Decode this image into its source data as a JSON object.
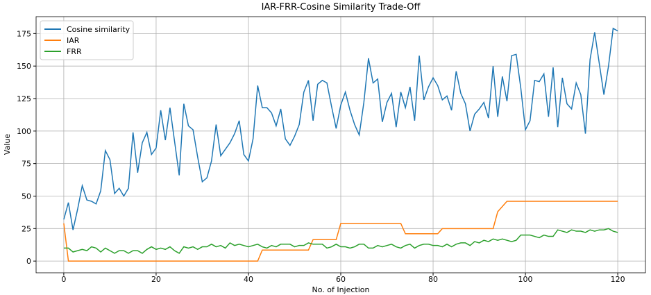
{
  "chart_data": {
    "type": "line",
    "title": "IAR-FRR-Cosine Similarity Trade-Off",
    "xlabel": "No. of Injection",
    "ylabel": "Value",
    "x": [
      0,
      1,
      2,
      3,
      4,
      5,
      6,
      7,
      8,
      9,
      10,
      11,
      12,
      13,
      14,
      15,
      16,
      17,
      18,
      19,
      20,
      21,
      22,
      23,
      24,
      25,
      26,
      27,
      28,
      29,
      30,
      31,
      32,
      33,
      34,
      35,
      36,
      37,
      38,
      39,
      40,
      41,
      42,
      43,
      44,
      45,
      46,
      47,
      48,
      49,
      50,
      51,
      52,
      53,
      54,
      55,
      56,
      57,
      58,
      59,
      60,
      61,
      62,
      63,
      64,
      65,
      66,
      67,
      68,
      69,
      70,
      71,
      72,
      73,
      74,
      75,
      76,
      77,
      78,
      79,
      80,
      81,
      82,
      83,
      84,
      85,
      86,
      87,
      88,
      89,
      90,
      91,
      92,
      93,
      94,
      95,
      96,
      97,
      98,
      99,
      100,
      101,
      102,
      103,
      104,
      105,
      106,
      107,
      108,
      109,
      110,
      111,
      112,
      113,
      114,
      115,
      116,
      117,
      118,
      119,
      120
    ],
    "series": [
      {
        "name": "Cosine similarity",
        "color": "#1f77b4",
        "values": [
          32,
          45,
          24,
          40,
          58,
          47,
          46,
          44,
          54,
          85,
          78,
          52,
          56,
          50,
          56,
          99,
          68,
          91,
          99,
          82,
          87,
          116,
          93,
          118,
          92,
          66,
          121,
          104,
          101,
          80,
          61,
          64,
          77,
          105,
          81,
          86,
          91,
          98,
          108,
          82,
          77,
          94,
          135,
          118,
          118,
          114,
          104,
          117,
          94,
          89,
          96,
          105,
          130,
          139,
          108,
          136,
          139,
          137,
          119,
          102,
          120,
          130,
          116,
          105,
          97,
          122,
          156,
          137,
          140,
          107,
          122,
          129,
          103,
          130,
          118,
          134,
          108,
          158,
          124,
          134,
          141,
          135,
          124,
          127,
          116,
          146,
          129,
          121,
          100,
          113,
          117,
          122,
          110,
          150,
          111,
          142,
          123,
          158,
          159,
          133,
          101,
          108,
          139,
          138,
          144,
          111,
          149,
          103,
          141,
          121,
          117,
          137,
          128,
          98,
          155,
          176,
          152,
          128,
          150,
          179,
          177
        ]
      },
      {
        "name": "IAR",
        "color": "#ff7f0e",
        "values": [
          29,
          0,
          0,
          0,
          0,
          0,
          0,
          0,
          0,
          0,
          0,
          0,
          0,
          0,
          0,
          0,
          0,
          0,
          0,
          0,
          0,
          0,
          0,
          0,
          0,
          0,
          0,
          0,
          0,
          0,
          0,
          0,
          0,
          0,
          0,
          0,
          0,
          0,
          0,
          0,
          0,
          0,
          0,
          8.5,
          8.5,
          8.5,
          8.5,
          8.5,
          8.5,
          8.5,
          8.5,
          8.5,
          8.5,
          8.5,
          16.5,
          16.5,
          16.5,
          16.5,
          16.5,
          16.5,
          29,
          29,
          29,
          29,
          29,
          29,
          29,
          29,
          29,
          29,
          29,
          29,
          29,
          29,
          21,
          21,
          21,
          21,
          21,
          21,
          21,
          21,
          25,
          25,
          25,
          25,
          25,
          25,
          25,
          25,
          25,
          25,
          25,
          25,
          38,
          42,
          46,
          46,
          46,
          46,
          46,
          46,
          46,
          46,
          46,
          46,
          46,
          46,
          46,
          46,
          46,
          46,
          46,
          46,
          46,
          46,
          46,
          46,
          46,
          46,
          46
        ]
      },
      {
        "name": "FRR",
        "color": "#2ca02c",
        "values": [
          10,
          10,
          7,
          8,
          9,
          8,
          11,
          10,
          7,
          10,
          8,
          6,
          8,
          8,
          6,
          8,
          8,
          6,
          9,
          11,
          9,
          10,
          9,
          11,
          8,
          6,
          11,
          10,
          11,
          9,
          11,
          11,
          13,
          11,
          12,
          10,
          14,
          12,
          13,
          12,
          11,
          12,
          13,
          11,
          10,
          12,
          11,
          13,
          13,
          13,
          11,
          12,
          12,
          14,
          13,
          13,
          13,
          10,
          11,
          13,
          11,
          11,
          10,
          11,
          13,
          13,
          10,
          10,
          12,
          11,
          12,
          13,
          11,
          10,
          12,
          13,
          10,
          12,
          13,
          13,
          12,
          12,
          11,
          13,
          11,
          13,
          14,
          14,
          12,
          15,
          14,
          16,
          15,
          17,
          16,
          17,
          16,
          15,
          16,
          20,
          20,
          20,
          19,
          18,
          20,
          19,
          19,
          24,
          23,
          22,
          24,
          23,
          23,
          22,
          24,
          23,
          24,
          24,
          25,
          23,
          22
        ]
      }
    ],
    "xlim": [
      -6,
      126
    ],
    "ylim": [
      -9,
      188
    ],
    "xticks": [
      0,
      20,
      40,
      60,
      80,
      100,
      120
    ],
    "yticks": [
      0,
      25,
      50,
      75,
      100,
      125,
      150,
      175
    ],
    "grid": true,
    "legend": "upper-left"
  }
}
